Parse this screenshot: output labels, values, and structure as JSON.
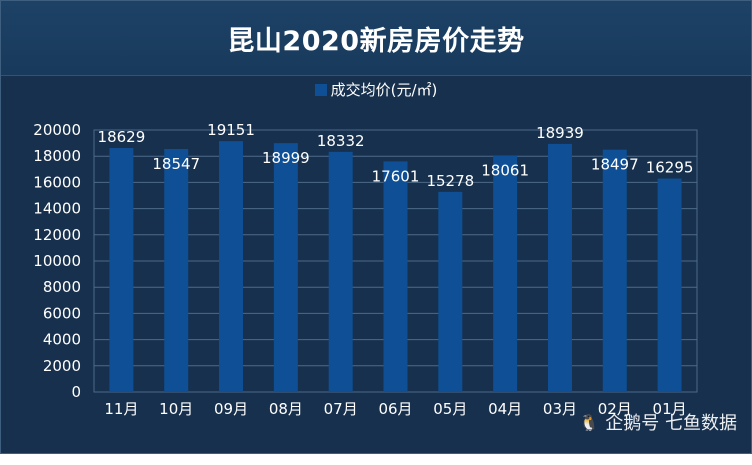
{
  "chart_data": {
    "type": "bar",
    "title": "昆山2020新房房价走势",
    "categories": [
      "11月",
      "10月",
      "09月",
      "08月",
      "07月",
      "06月",
      "05月",
      "04月",
      "03月",
      "02月",
      "01月"
    ],
    "series": [
      {
        "name": "成交均价(元/㎡)",
        "values": [
          18629,
          18547,
          19151,
          18999,
          18332,
          17601,
          15278,
          18061,
          18939,
          18497,
          16295
        ]
      }
    ],
    "ylim": [
      0,
      20000
    ],
    "yticks": [
      0,
      2000,
      4000,
      6000,
      8000,
      10000,
      12000,
      14000,
      16000,
      18000,
      20000
    ],
    "grid": true,
    "legend": "top-center",
    "colors": {
      "bar": "#0e4f95",
      "background": "#17304d",
      "grid": "#4e6a89",
      "text": "#ffffff"
    }
  },
  "watermark": {
    "text": "企鹅号 七鱼数据",
    "icon": "penguin-icon"
  }
}
